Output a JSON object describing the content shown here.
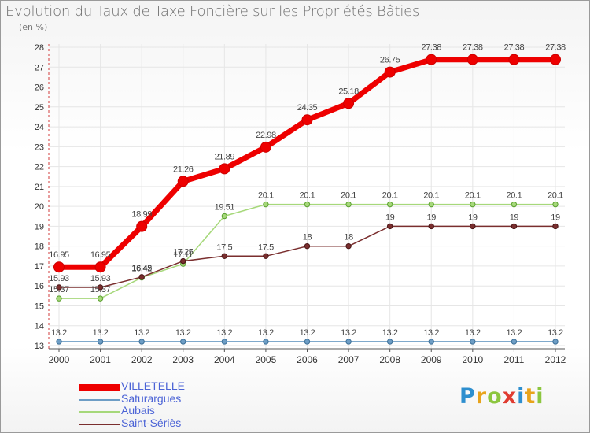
{
  "title": "Evolution du Taux de Taxe Foncière sur les Propriétés Bâties",
  "subtitle": "(en %)",
  "brand": {
    "letters": [
      "P",
      "r",
      "o",
      "x",
      "i",
      "t",
      "i"
    ],
    "colors": [
      "#2e8fcf",
      "#e8a31b",
      "#8cc63f",
      "#e03c31",
      "#2e8fcf",
      "#e8a31b",
      "#8cc63f"
    ]
  },
  "chart_data": {
    "type": "line",
    "x": [
      "2000",
      "2001",
      "2002",
      "2003",
      "2004",
      "2005",
      "2006",
      "2007",
      "2008",
      "2009",
      "2010",
      "2011",
      "2012"
    ],
    "ylim": [
      13,
      28
    ],
    "yticks": [
      13,
      14,
      15,
      16,
      17,
      18,
      19,
      20,
      21,
      22,
      23,
      24,
      25,
      26,
      27,
      28
    ],
    "grid": true,
    "legend_position": "bottom-left",
    "series": [
      {
        "name": "VILLETELLE",
        "color": "#ee0000",
        "values": [
          16.95,
          16.95,
          18.99,
          21.26,
          21.89,
          22.98,
          24.35,
          25.18,
          26.75,
          27.38,
          27.38,
          27.38,
          27.38
        ],
        "labels": [
          "16.95",
          "16.95",
          "18.99",
          "21.26",
          "21.89",
          "22.98",
          "24.35",
          "25.18",
          "26.75",
          "27.38",
          "27.38",
          "27.38",
          "27.38"
        ]
      },
      {
        "name": "Saturargues",
        "color": "#6d9dc5",
        "values": [
          13.2,
          13.2,
          13.2,
          13.2,
          13.2,
          13.2,
          13.2,
          13.2,
          13.2,
          13.2,
          13.2,
          13.2,
          13.2
        ],
        "labels": [
          "13.2",
          "13.2",
          "13.2",
          "13.2",
          "13.2",
          "13.2",
          "13.2",
          "13.2",
          "13.2",
          "13.2",
          "13.2",
          "13.2",
          "13.2"
        ]
      },
      {
        "name": "Aubais",
        "color": "#a6d87a",
        "values": [
          15.37,
          15.37,
          16.42,
          17.11,
          19.51,
          20.1,
          20.1,
          20.1,
          20.1,
          20.1,
          20.1,
          20.1,
          20.1
        ],
        "labels": [
          "15.37",
          "15.37",
          "16.42",
          "17.11",
          "19.51",
          "20.1",
          "20.1",
          "20.1",
          "20.1",
          "20.1",
          "20.1",
          "20.1",
          "20.1"
        ]
      },
      {
        "name": "Saint-Sériès",
        "color": "#7a2e2e",
        "values": [
          15.93,
          15.93,
          16.45,
          17.25,
          17.5,
          17.5,
          18,
          18,
          19,
          19,
          19,
          19,
          19
        ],
        "labels": [
          "15.93",
          "15.93",
          "16.45",
          "17.25",
          "17.5",
          "17.5",
          "18",
          "18",
          "19",
          "19",
          "19",
          "19",
          "19"
        ]
      }
    ]
  }
}
